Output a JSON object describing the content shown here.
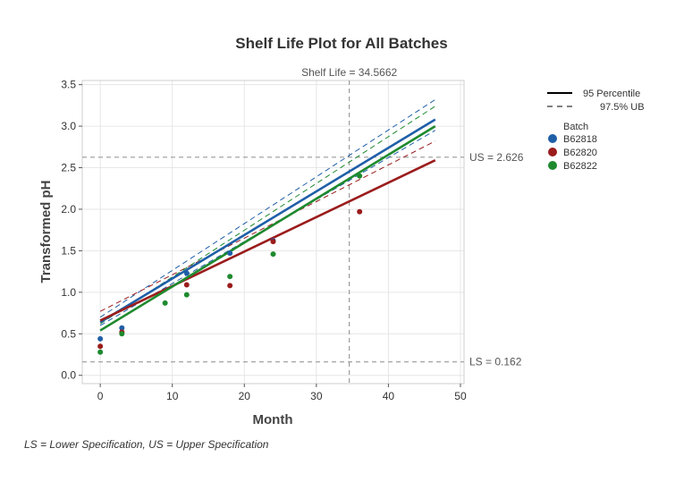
{
  "chart_data": {
    "type": "line",
    "title": "Shelf Life Plot for All Batches",
    "xlabel": "Month",
    "ylabel": "Transformed pH",
    "xlim": [
      -2.5,
      50.5
    ],
    "ylim": [
      -0.1,
      3.55
    ],
    "x_ticks": [
      0,
      10,
      20,
      30,
      40,
      50
    ],
    "y_ticks": [
      0.0,
      0.5,
      1.0,
      1.5,
      2.0,
      2.5,
      3.0,
      3.5
    ],
    "x_tick_labels": [
      "0",
      "10",
      "20",
      "30",
      "40",
      "50"
    ],
    "y_tick_labels": [
      "0.0",
      "0.5",
      "1.0",
      "1.5",
      "2.0",
      "2.5",
      "3.0",
      "3.5"
    ],
    "grid": true,
    "legend_position": "right",
    "legend": {
      "line_types": [
        {
          "label": "95 Percentile",
          "style": "solid"
        },
        {
          "label": "97.5% UB",
          "style": "dashed"
        }
      ],
      "batch_title": "Batch"
    },
    "reference_lines": {
      "upper": {
        "y": 2.626,
        "label": "US = 2.626"
      },
      "lower": {
        "y": 0.162,
        "label": "LS = 0.162"
      },
      "shelf_life": {
        "x": 34.5662,
        "label": "Shelf Life = 34.5662"
      },
      "color": "#9a9a9a"
    },
    "series": [
      {
        "name": "B62818",
        "color": "#1f5fa8",
        "points": [
          [
            0,
            0.44
          ],
          [
            3,
            0.57
          ],
          [
            12,
            1.23
          ],
          [
            18,
            1.47
          ],
          [
            24,
            1.62
          ]
        ],
        "fit_line": [
          [
            0,
            0.64
          ],
          [
            46.5,
            3.08
          ]
        ],
        "upper_bound": [
          [
            0,
            0.7
          ],
          [
            46.5,
            3.32
          ]
        ],
        "lower_bound": [
          [
            0,
            0.6
          ],
          [
            46.5,
            2.95
          ]
        ]
      },
      {
        "name": "B62820",
        "color": "#9b1c1c",
        "points": [
          [
            0,
            0.35
          ],
          [
            3,
            0.52
          ],
          [
            12,
            1.09
          ],
          [
            18,
            1.08
          ],
          [
            24,
            1.61
          ],
          [
            36,
            1.97
          ]
        ],
        "fit_line": [
          [
            0,
            0.66
          ],
          [
            46.5,
            2.59
          ]
        ],
        "upper_bound": [
          [
            0,
            0.77
          ],
          [
            46.5,
            2.82
          ]
        ]
      },
      {
        "name": "B62822",
        "color": "#1e8a2e",
        "points": [
          [
            0,
            0.28
          ],
          [
            3,
            0.5
          ],
          [
            9,
            0.87
          ],
          [
            12,
            0.97
          ],
          [
            18,
            1.19
          ],
          [
            24,
            1.46
          ],
          [
            36,
            2.4
          ]
        ],
        "fit_line": [
          [
            0,
            0.54
          ],
          [
            46.5,
            3.0
          ]
        ],
        "upper_bound": [
          [
            0,
            0.62
          ],
          [
            46.5,
            3.24
          ]
        ]
      }
    ]
  },
  "footnote": "LS = Lower Specification, US = Upper Specification"
}
